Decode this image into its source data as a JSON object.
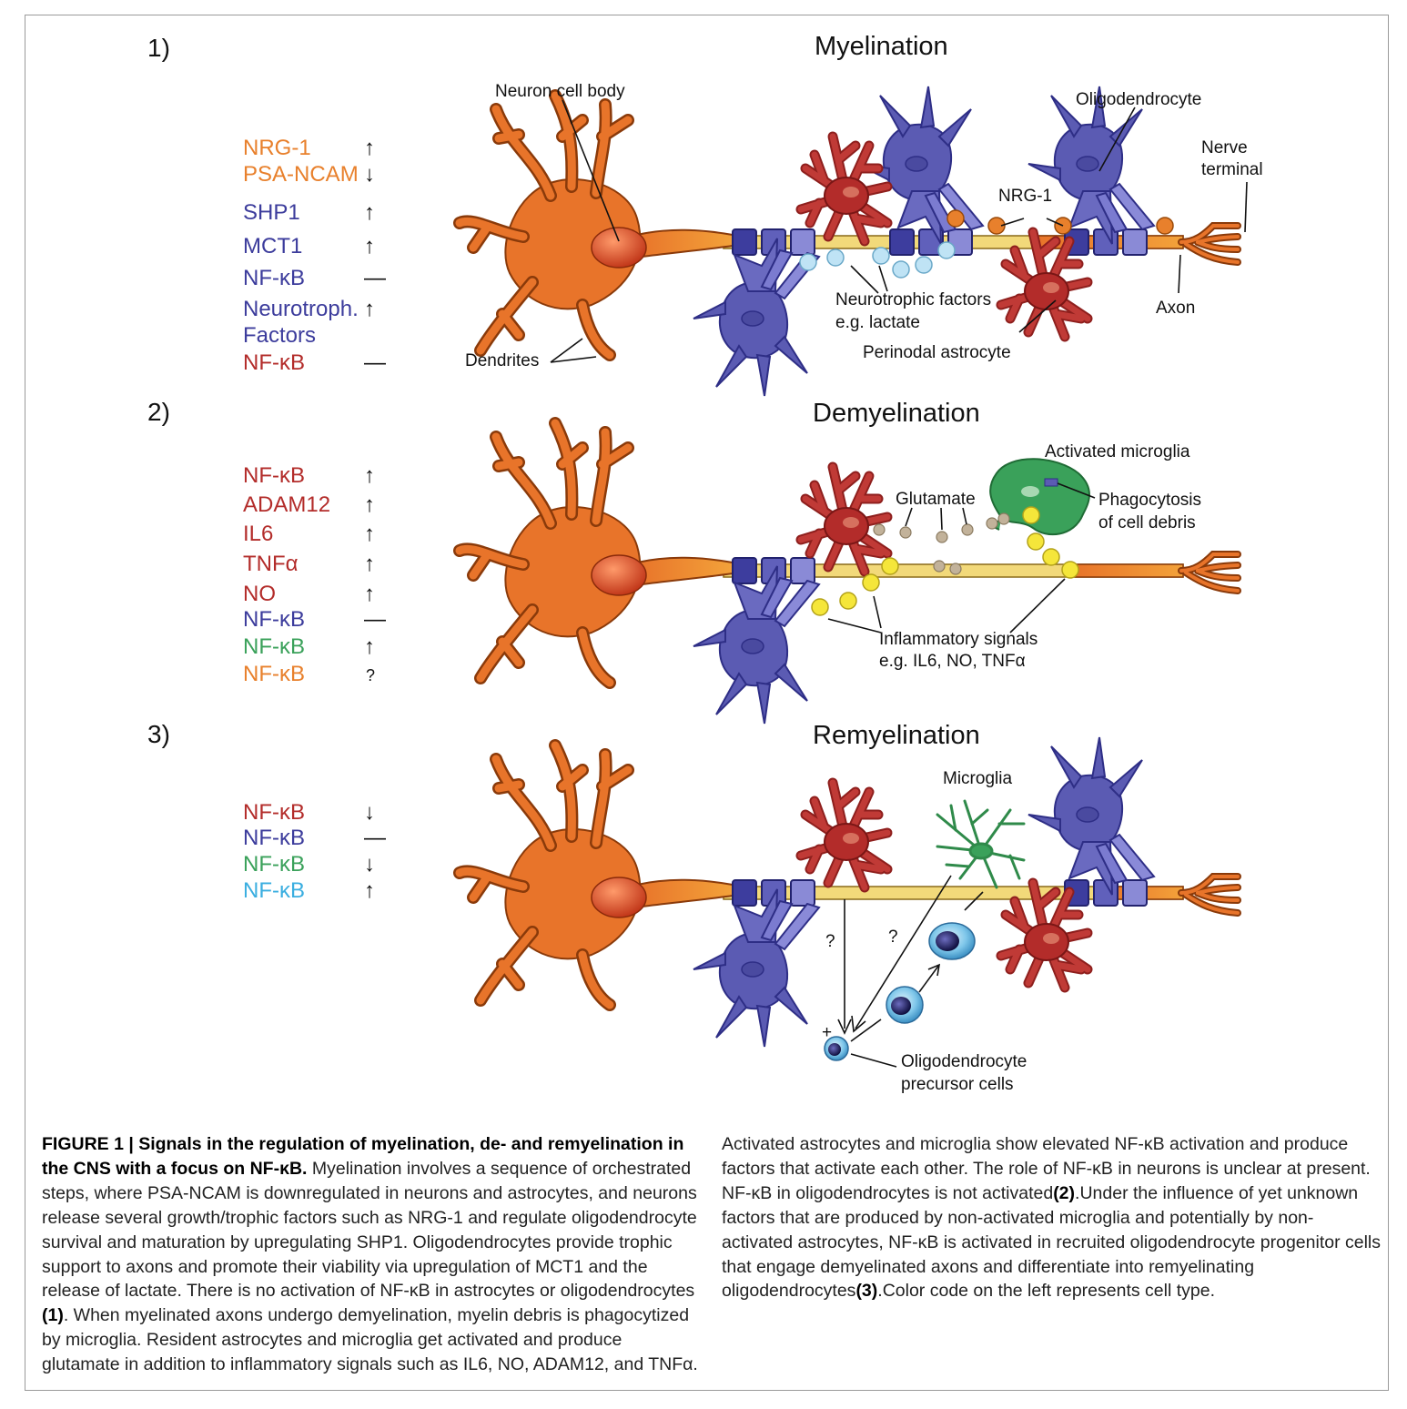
{
  "colors": {
    "neuron": "#e8742a",
    "neuron_dark": "#a8430d",
    "oligodendrocyte": "#5b5bb3",
    "oligo_dark": "#2e2e86",
    "astrocyte": "#b32c2a",
    "microglia": "#3aa15a",
    "opc": "#3aaee0",
    "myelin_axon": "#f2d97a",
    "orange_dot": "#e8802c",
    "blue_dot": "#bfe3f5",
    "yellow_dot": "#f5e63a",
    "glutamate_dot": "#c2b29a"
  },
  "panels": [
    {
      "number": "1)",
      "title": "Myelination",
      "legend": [
        {
          "label": "NRG-1",
          "arrow": "↑",
          "color": "#e8802c"
        },
        {
          "label": "PSA-NCAM",
          "arrow": "↓",
          "color": "#e8802c"
        },
        {
          "label": "SHP1",
          "arrow": "↑",
          "color": "#3c3c9c"
        },
        {
          "label": "MCT1",
          "arrow": "↑",
          "color": "#3c3c9c"
        },
        {
          "label": "NF-κB",
          "arrow": "—",
          "color": "#3c3c9c"
        },
        {
          "label": "Neurotroph.",
          "arrow": "↑",
          "color": "#3c3c9c"
        },
        {
          "label": "Factors",
          "arrow": "",
          "color": "#3c3c9c"
        },
        {
          "label": "NF-κB",
          "arrow": "—",
          "color": "#b32c2a"
        }
      ],
      "annotations": {
        "neuron_cell_body": "Neuron cell body",
        "oligodendrocyte": "Oligodendrocyte",
        "nerve": "Nerve",
        "terminal": "terminal",
        "nrg1": "NRG-1",
        "neurotrophic": "Neurotrophic factors",
        "lactate": "e.g. lactate",
        "axon": "Axon",
        "perinodal": "Perinodal astrocyte",
        "dendrites": "Dendrites"
      }
    },
    {
      "number": "2)",
      "title": "Demyelination",
      "legend": [
        {
          "label": "NF-κB",
          "arrow": "↑",
          "color": "#b32c2a"
        },
        {
          "label": "ADAM12",
          "arrow": "↑",
          "color": "#b32c2a"
        },
        {
          "label": "IL6",
          "arrow": "↑",
          "color": "#b32c2a"
        },
        {
          "label": "TNFα",
          "arrow": "↑",
          "color": "#b32c2a"
        },
        {
          "label": "NO",
          "arrow": "↑",
          "color": "#b32c2a"
        },
        {
          "label": "NF-κB",
          "arrow": "—",
          "color": "#3c3c9c"
        },
        {
          "label": "NF-κB",
          "arrow": "↑",
          "color": "#3aa15a"
        },
        {
          "label": "NF-κB",
          "arrow": "?",
          "color": "#e8802c"
        }
      ],
      "annotations": {
        "activated_microglia": "Activated microglia",
        "glutamate": "Glutamate",
        "phagocytosis": "Phagocytosis",
        "cell_debris": "of cell debris",
        "inflammatory": "Inflammatory signals",
        "examples": "e.g. IL6, NO, TNFα"
      }
    },
    {
      "number": "3)",
      "title": "Remyelination",
      "legend": [
        {
          "label": "NF-κB",
          "arrow": "↓",
          "color": "#b32c2a"
        },
        {
          "label": "NF-κB",
          "arrow": "—",
          "color": "#3c3c9c"
        },
        {
          "label": "NF-κB",
          "arrow": "↓",
          "color": "#3aa15a"
        },
        {
          "label": "NF-κB",
          "arrow": "↑",
          "color": "#3aaee0"
        }
      ],
      "annotations": {
        "microglia": "Microglia",
        "q1": "?",
        "q2": "?",
        "plus": "+",
        "opc1": "Oligodendrocyte",
        "opc2": "precursor cells"
      }
    }
  ],
  "caption": {
    "label": "FIGURE 1 | Signals in the regulation of myelination, de- and remyelination in the CNS with a focus on NF-κB.",
    "p1": "Myelination involves a sequence of orchestrated steps, where PSA-NCAM is downregulated in neurons and astrocytes, and neurons release several growth/trophic factors such as NRG-1 and regulate oligodendrocyte survival and maturation by upregulating SHP1. Oligodendrocytes provide trophic support to axons and promote their viability via upregulation of MCT1 and the release of lactate. There is no activation of NF-κB in astrocytes or oligodendrocytes",
    "ref1": "(1)",
    "p2": ". When myelinated axons undergo demyelination, myelin debris is phagocytized by microglia. Resident astrocytes and microglia get activated and produce glutamate in addition to inflammatory signals such as IL6, NO, ADAM12, and TNFα. Activated astrocytes and microglia show elevated NF-κB activation and produce factors that activate each other. The role of NF-κB in neurons is unclear at present. NF-κB in oligodendrocytes is not activated",
    "ref2": "(2)",
    "p3": ". Under the influence of yet unknown factors that are produced by non-activated microglia and potentially by non-activated astrocytes, NF-κB is activated in recruited oligodendrocyte progenitor cells that engage demyelinated axons and differentiate into remyelinating oligodendrocytes",
    "ref3": "(3)",
    "p4": ". Color code on the left represents cell type."
  }
}
